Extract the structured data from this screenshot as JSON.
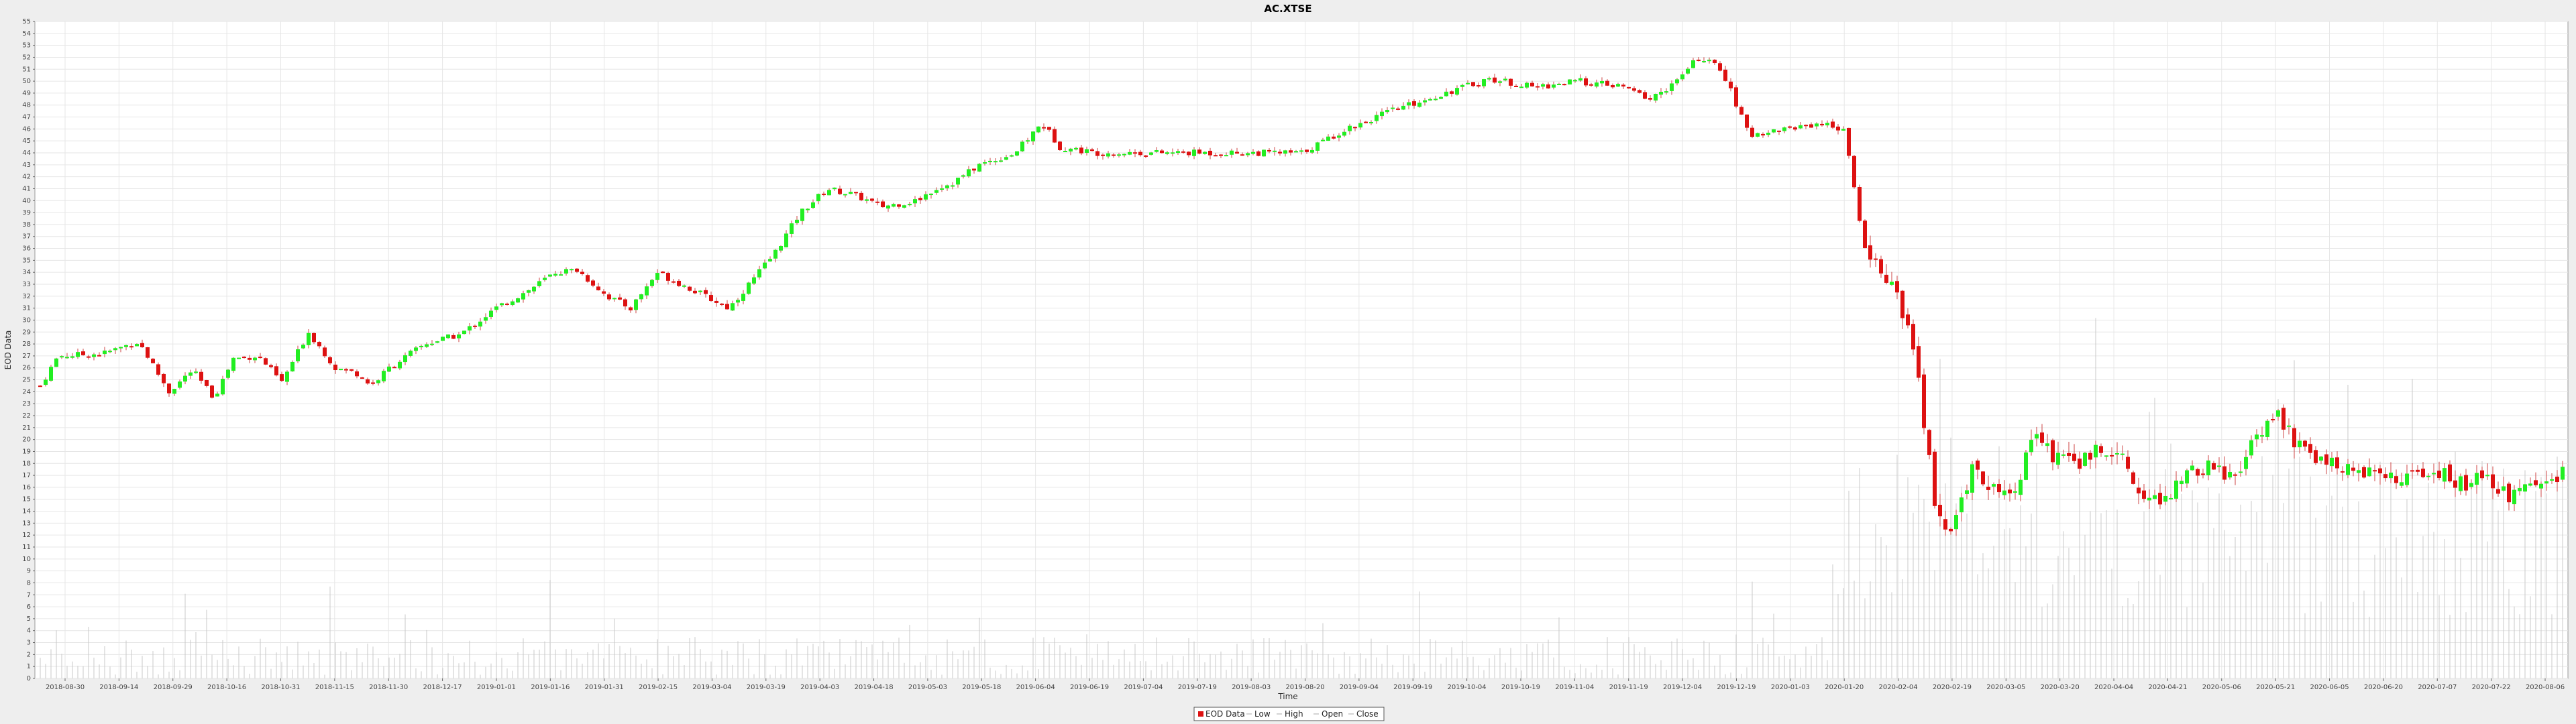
{
  "chart_data": {
    "type": "candlestick",
    "title": "AC.XTSE",
    "xlabel": "Time",
    "ylabel": "EOD Data",
    "ylim": [
      0,
      55
    ],
    "yticks": [
      0,
      1,
      2,
      3,
      4,
      5,
      6,
      7,
      8,
      9,
      10,
      11,
      12,
      13,
      14,
      15,
      16,
      17,
      18,
      19,
      20,
      21,
      22,
      23,
      24,
      25,
      26,
      27,
      28,
      29,
      30,
      31,
      32,
      33,
      34,
      35,
      36,
      37,
      38,
      39,
      40,
      41,
      42,
      43,
      44,
      45,
      46,
      47,
      48,
      49,
      50,
      51,
      52,
      53,
      54,
      55
    ],
    "xticks": [
      "2018-08-30",
      "2018-09-14",
      "2018-09-29",
      "2018-10-16",
      "2018-10-31",
      "2018-11-15",
      "2018-11-30",
      "2018-12-17",
      "2019-01-01",
      "2019-01-16",
      "2019-01-31",
      "2019-02-15",
      "2019-03-04",
      "2019-03-19",
      "2019-04-03",
      "2019-04-18",
      "2019-05-03",
      "2019-05-18",
      "2019-06-04",
      "2019-06-19",
      "2019-07-04",
      "2019-07-19",
      "2019-08-03",
      "2019-08-20",
      "2019-09-04",
      "2019-09-19",
      "2019-10-04",
      "2019-10-19",
      "2019-11-04",
      "2019-11-19",
      "2019-12-04",
      "2019-12-19",
      "2020-01-03",
      "2020-01-20",
      "2020-02-04",
      "2020-02-19",
      "2020-03-05",
      "2020-03-20",
      "2020-04-04",
      "2020-04-21",
      "2020-05-06",
      "2020-05-21",
      "2020-06-05",
      "2020-06-20",
      "2020-07-07",
      "2020-07-22",
      "2020-08-06"
    ],
    "grid": true,
    "legend": {
      "position": "bottom-center",
      "entries": [
        "EOD Data",
        "Low",
        "High",
        "Open",
        "Close"
      ]
    },
    "colors": {
      "up": "#22ee22",
      "down": "#dd1111",
      "wick": "#cc4444",
      "volume": "#c8c8c8",
      "grid": "#e6e6e6",
      "plot_bg": "#ffffff"
    },
    "close_anchors": [
      [
        0,
        24.5
      ],
      [
        10,
        27.0
      ],
      [
        35,
        27.2
      ],
      [
        55,
        28.2
      ],
      [
        72,
        24.0
      ],
      [
        85,
        25.8
      ],
      [
        97,
        23.5
      ],
      [
        108,
        26.8
      ],
      [
        122,
        27.0
      ],
      [
        135,
        24.8
      ],
      [
        150,
        29.0
      ],
      [
        165,
        26.0
      ],
      [
        178,
        25.5
      ],
      [
        185,
        24.5
      ],
      [
        195,
        26.0
      ],
      [
        215,
        28.0
      ],
      [
        235,
        28.8
      ],
      [
        255,
        31.0
      ],
      [
        273,
        32.5
      ],
      [
        288,
        34.0
      ],
      [
        300,
        34.2
      ],
      [
        317,
        32.0
      ],
      [
        330,
        31.0
      ],
      [
        345,
        34.0
      ],
      [
        365,
        32.5
      ],
      [
        385,
        31.0
      ],
      [
        410,
        35.5
      ],
      [
        425,
        39.0
      ],
      [
        440,
        41.0
      ],
      [
        455,
        40.5
      ],
      [
        470,
        39.5
      ],
      [
        490,
        40.0
      ],
      [
        500,
        41.0
      ],
      [
        510,
        41.5
      ],
      [
        525,
        43.0
      ],
      [
        545,
        44.0
      ],
      [
        560,
        46.5
      ],
      [
        570,
        44.5
      ],
      [
        590,
        44.0
      ],
      [
        615,
        44.0
      ],
      [
        645,
        44.0
      ],
      [
        675,
        44.0
      ],
      [
        705,
        44.0
      ],
      [
        730,
        46.0
      ],
      [
        755,
        47.5
      ],
      [
        785,
        49.0
      ],
      [
        810,
        50.2
      ],
      [
        835,
        49.5
      ],
      [
        860,
        50.0
      ],
      [
        885,
        49.5
      ],
      [
        900,
        48.5
      ],
      [
        915,
        50.0
      ],
      [
        927,
        52.0
      ],
      [
        940,
        51.0
      ],
      [
        955,
        45.5
      ],
      [
        975,
        46.0
      ],
      [
        995,
        46.5
      ],
      [
        1008,
        46.0
      ],
      [
        1020,
        36.0
      ],
      [
        1035,
        33.0
      ],
      [
        1048,
        27.0
      ],
      [
        1060,
        14.0
      ],
      [
        1068,
        12.5
      ],
      [
        1080,
        17.5
      ],
      [
        1092,
        16.0
      ],
      [
        1100,
        15.0
      ],
      [
        1115,
        20.0
      ],
      [
        1130,
        18.0
      ],
      [
        1145,
        18.5
      ],
      [
        1160,
        19.5
      ],
      [
        1172,
        16.0
      ],
      [
        1185,
        14.5
      ],
      [
        1198,
        17.0
      ],
      [
        1212,
        17.5
      ],
      [
        1225,
        17.0
      ],
      [
        1240,
        20.0
      ],
      [
        1250,
        22.0
      ],
      [
        1265,
        19.0
      ],
      [
        1290,
        17.5
      ],
      [
        1315,
        17.0
      ],
      [
        1335,
        17.5
      ],
      [
        1350,
        16.5
      ],
      [
        1365,
        16.5
      ],
      [
        1380,
        15.5
      ],
      [
        1395,
        16.0
      ],
      [
        1410,
        17.0
      ]
    ],
    "x_range": [
      0,
      1410
    ]
  }
}
